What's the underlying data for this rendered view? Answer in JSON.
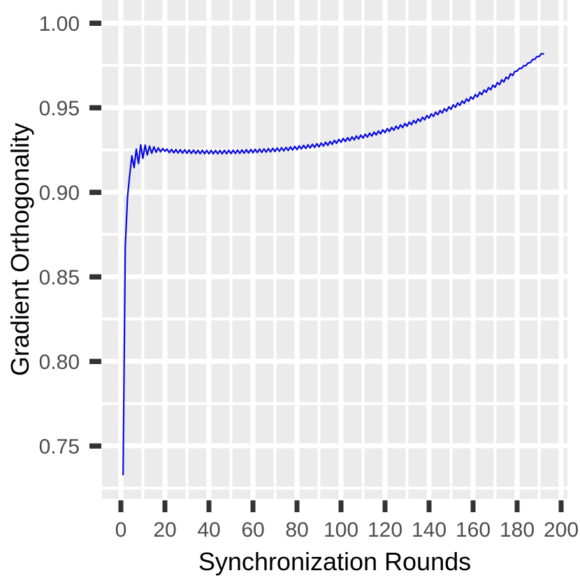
{
  "chart_data": {
    "type": "line",
    "title": "",
    "xlabel": "Synchronization Rounds",
    "ylabel": "Gradient Orthogonality",
    "x_ticks": [
      0,
      20,
      40,
      60,
      80,
      100,
      120,
      140,
      160,
      180,
      200
    ],
    "x_tick_labels": [
      "0",
      "20",
      "40",
      "60",
      "80",
      "100",
      "120",
      "140",
      "160",
      "180",
      "200"
    ],
    "y_ticks": [
      0.75,
      0.8,
      0.85,
      0.9,
      0.95,
      1.0
    ],
    "y_tick_labels": [
      "0.75",
      "0.80",
      "0.85",
      "0.90",
      "0.95",
      "1.00"
    ],
    "x_minor_ticks": [
      10,
      30,
      50,
      70,
      90,
      110,
      130,
      150,
      170,
      190
    ],
    "y_minor_ticks": [
      0.725,
      0.775,
      0.825,
      0.875,
      0.925,
      0.975
    ],
    "xlim": [
      -8.6,
      202.9
    ],
    "ylim": [
      0.7186,
      1.0136
    ],
    "grid": {
      "major": true,
      "minor": true
    },
    "legend": "none",
    "series": [
      {
        "name": "gradient-orthogonality",
        "color": "#0808E0",
        "x_start": 1,
        "x_end": 192,
        "early_y": [
          0.733,
          0.868,
          0.897,
          0.91,
          0.9215,
          0.9145,
          0.9255,
          0.917,
          0.928,
          0.92,
          0.9278,
          0.922,
          0.9272,
          0.923,
          0.9268,
          0.9236,
          0.9262,
          0.9239,
          0.9258,
          0.9242
        ],
        "trend_anchors": [
          [
            20,
            0.9245
          ],
          [
            25,
            0.9242
          ],
          [
            30,
            0.924
          ],
          [
            35,
            0.9238
          ],
          [
            40,
            0.9237
          ],
          [
            45,
            0.9237
          ],
          [
            50,
            0.9238
          ],
          [
            55,
            0.924
          ],
          [
            60,
            0.9243
          ],
          [
            65,
            0.9246
          ],
          [
            70,
            0.925
          ],
          [
            75,
            0.9255
          ],
          [
            80,
            0.9262
          ],
          [
            85,
            0.927
          ],
          [
            90,
            0.9278
          ],
          [
            95,
            0.929
          ],
          [
            100,
            0.9305
          ],
          [
            105,
            0.9317
          ],
          [
            110,
            0.933
          ],
          [
            115,
            0.9345
          ],
          [
            120,
            0.9362
          ],
          [
            125,
            0.938
          ],
          [
            130,
            0.94
          ],
          [
            135,
            0.9423
          ],
          [
            140,
            0.9448
          ],
          [
            145,
            0.9473
          ],
          [
            150,
            0.95
          ],
          [
            155,
            0.9529
          ],
          [
            160,
            0.956
          ],
          [
            165,
            0.9594
          ],
          [
            170,
            0.963
          ],
          [
            175,
            0.967
          ],
          [
            180,
            0.972
          ],
          [
            185,
            0.976
          ],
          [
            188,
            0.979
          ],
          [
            190,
            0.9806
          ],
          [
            191,
            0.9815
          ],
          [
            192,
            0.9822
          ]
        ],
        "oscillation": {
          "period_rounds": 2,
          "positive_on_odd_round": true,
          "segments": [
            {
              "from": 21,
              "to": 178,
              "amplitude": 0.001
            },
            {
              "from": 179,
              "to": 192,
              "amplitude": 0.0004
            }
          ]
        }
      }
    ],
    "colors": {
      "panel_background": "#EBEBEB",
      "grid": "#FFFFFF",
      "tick_mark": "#333333",
      "tick_label": "#4D4D4D",
      "axis_title": "#000000",
      "page_background": "#FFFFFF"
    }
  }
}
